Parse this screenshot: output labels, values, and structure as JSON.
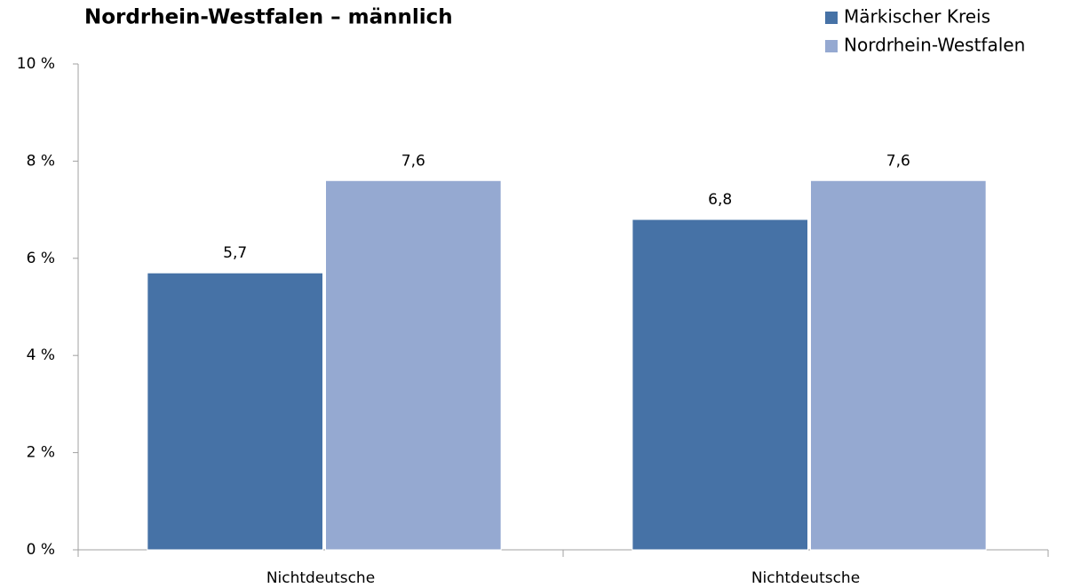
{
  "chart_data": {
    "type": "bar",
    "title": "Nordrhein-Westfalen – männlich",
    "categories": [
      "Nichtdeutsche",
      "Nichtdeutsche"
    ],
    "series": [
      {
        "name": "Märkischer Kreis",
        "color": "#4672a6",
        "values": [
          5.7,
          6.8
        ],
        "value_labels": [
          "5,7",
          "6,8"
        ]
      },
      {
        "name": "Nordrhein-Westfalen",
        "color": "#95a9d1",
        "values": [
          7.6,
          7.6
        ],
        "value_labels": [
          "7,6",
          "7,6"
        ]
      }
    ],
    "ylim": [
      0,
      10
    ],
    "yticks": [
      {
        "value": 0,
        "label": "0 %"
      },
      {
        "value": 2,
        "label": "2 %"
      },
      {
        "value": 4,
        "label": "4 %"
      },
      {
        "value": 6,
        "label": "6 %"
      },
      {
        "value": 8,
        "label": "8 %"
      },
      {
        "value": 10,
        "label": "10 %"
      }
    ],
    "legend": "top-right",
    "grid": false
  }
}
